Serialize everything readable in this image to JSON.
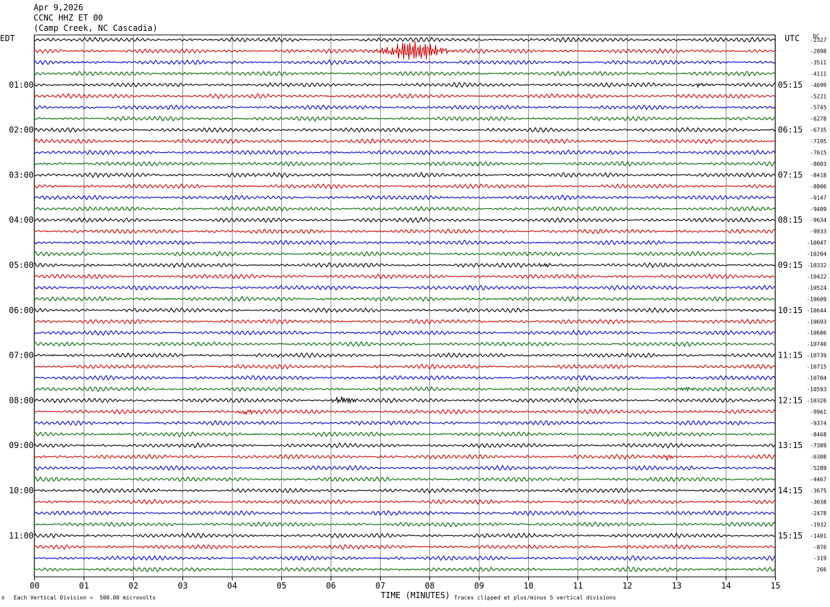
{
  "header": {
    "date": "Apr 9,2026",
    "station": "CCNC HHZ ET 00",
    "location": "(Camp Creek, NC Cascadia)"
  },
  "left_tz": "EDT",
  "right_tz": "UTC",
  "dc_label": "DC",
  "footer": {
    "division_note": "Each Vertical Division =  500.00 microvolts",
    "xlabel": "TIME (MINUTES)",
    "clip_note": "Traces clipped at plus/minus 5 vertical divisions"
  },
  "chart_data": {
    "type": "line",
    "title": "CCNC HHZ ET 00",
    "xlabel": "TIME (MINUTES)",
    "ylabel": "",
    "xlim": [
      0,
      15
    ],
    "grid": true,
    "x_ticks": [
      "00",
      "01",
      "02",
      "03",
      "04",
      "05",
      "06",
      "07",
      "08",
      "09",
      "10",
      "11",
      "12",
      "13",
      "14",
      "15"
    ],
    "edt_hours": [
      "01:00",
      "02:00",
      "03:00",
      "04:00",
      "05:00",
      "06:00",
      "07:00",
      "08:00",
      "09:00",
      "10:00",
      "11:00"
    ],
    "utc_hours": [
      "05:15",
      "06:15",
      "07:15",
      "08:15",
      "09:15",
      "10:15",
      "11:15",
      "12:15",
      "13:15",
      "14:15",
      "15:15"
    ],
    "trace_colors": [
      "#000000",
      "#cc0000",
      "#0000cc",
      "#006600"
    ],
    "dc_offsets": [
      "-2327",
      "-2898",
      "-3511",
      "-4111",
      "-4699",
      "-5221",
      "-5745",
      "-6278",
      "-6735",
      "-7195",
      "-7615",
      "-8003",
      "-8418",
      "-8806",
      "-9147",
      "-9409",
      "-9634",
      "-9833",
      "-10047",
      "-10204",
      "-10332",
      "-10422",
      "-10524",
      "-10609",
      "-10644",
      "-10693",
      "-10686",
      "-10740",
      "-10739",
      "-10715",
      "-10704",
      "-10593",
      "-10326",
      "-9961",
      "-9374",
      "-8468",
      "-7389",
      "-6308",
      "-5289",
      "-4467",
      "-3675",
      "-3038",
      "-2478",
      "-1932",
      "-1401",
      "-876",
      "-319",
      "266"
    ],
    "events": [
      {
        "trace": 1,
        "minute": 7.7,
        "strength": 10
      },
      {
        "trace": 32,
        "minute": 6.25,
        "strength": 3
      },
      {
        "trace": 33,
        "minute": 4.3,
        "strength": 2
      },
      {
        "trace": 31,
        "minute": 13.2,
        "strength": 2
      },
      {
        "trace": 37,
        "minute": 12.8,
        "strength": 2
      },
      {
        "trace": 4,
        "minute": 13.5,
        "strength": 1.5
      },
      {
        "trace": 20,
        "minute": 10.3,
        "strength": 1.5
      }
    ]
  }
}
